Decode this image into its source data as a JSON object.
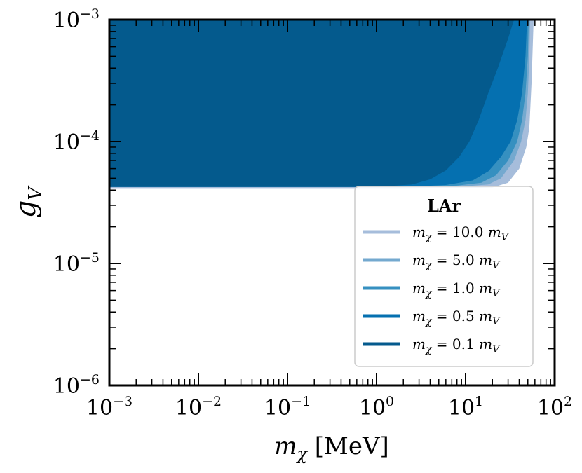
{
  "chart_data": {
    "type": "area",
    "xscale": "log",
    "yscale": "log",
    "xlim": [
      0.001,
      100
    ],
    "ylim": [
      1e-06,
      0.001
    ],
    "xlabel": "m_χ [MeV]",
    "ylabel": "g_V",
    "x_ticks": [
      {
        "base": "10",
        "exp": "−3",
        "value": 0.001
      },
      {
        "base": "10",
        "exp": "−2",
        "value": 0.01
      },
      {
        "base": "10",
        "exp": "−1",
        "value": 0.1
      },
      {
        "base": "10",
        "exp": "0",
        "value": 1
      },
      {
        "base": "10",
        "exp": "1",
        "value": 10
      },
      {
        "base": "10",
        "exp": "2",
        "value": 100
      }
    ],
    "y_ticks": [
      {
        "base": "10",
        "exp": "−6",
        "value": 1e-06
      },
      {
        "base": "10",
        "exp": "−5",
        "value": 1e-05
      },
      {
        "base": "10",
        "exp": "−4",
        "value": 0.0001
      },
      {
        "base": "10",
        "exp": "−3",
        "value": 0.001
      }
    ],
    "legend": {
      "title": "LAr",
      "position": "lower-right"
    },
    "series": [
      {
        "name": "m_χ = 10.0 m_V",
        "legend_parts": {
          "lhs": "m",
          "lhs_sub": "χ",
          "mid": " = 10.0 ",
          "rhs": "m",
          "rhs_sub": "V"
        },
        "color": "#a6bddb",
        "lower_boundary": [
          [
            0.001,
            4.1e-05
          ],
          [
            2,
            4.1e-05
          ],
          [
            10,
            4.15e-05
          ],
          [
            20,
            4.2e-05
          ],
          [
            30,
            4.6e-05
          ],
          [
            40,
            6e-05
          ],
          [
            48,
            9e-05
          ],
          [
            52,
            0.00013
          ],
          [
            55,
            0.0003
          ],
          [
            58,
            0.001
          ]
        ]
      },
      {
        "name": "m_χ = 5.0 m_V",
        "legend_parts": {
          "lhs": "m",
          "lhs_sub": "χ",
          "mid": " = 5.0 ",
          "rhs": "m",
          "rhs_sub": "V"
        },
        "color": "#74a9cf",
        "lower_boundary": [
          [
            0.001,
            4.25e-05
          ],
          [
            2,
            4.25e-05
          ],
          [
            10,
            4.3e-05
          ],
          [
            18,
            4.45e-05
          ],
          [
            25,
            5e-05
          ],
          [
            35,
            7e-05
          ],
          [
            42,
            0.0001
          ],
          [
            47,
            0.00015
          ],
          [
            50,
            0.00025
          ],
          [
            52,
            0.0005
          ],
          [
            53,
            0.001
          ]
        ]
      },
      {
        "name": "m_χ = 1.0 m_V",
        "legend_parts": {
          "lhs": "m",
          "lhs_sub": "χ",
          "mid": " = 1.0 ",
          "rhs": "m",
          "rhs_sub": "V"
        },
        "color": "#3690c0",
        "lower_boundary": [
          [
            0.001,
            4.25e-05
          ],
          [
            2,
            4.25e-05
          ],
          [
            8,
            4.35e-05
          ],
          [
            15,
            4.6e-05
          ],
          [
            22,
            5.3e-05
          ],
          [
            30,
            7e-05
          ],
          [
            38,
            0.0001
          ],
          [
            43,
            0.00015
          ],
          [
            47,
            0.00025
          ],
          [
            50,
            0.0005
          ],
          [
            51,
            0.001
          ]
        ]
      },
      {
        "name": "m_χ = 0.5 m_V",
        "legend_parts": {
          "lhs": "m",
          "lhs_sub": "χ",
          "mid": " = 0.5 ",
          "rhs": "m",
          "rhs_sub": "V"
        },
        "color": "#0570b0",
        "lower_boundary": [
          [
            0.001,
            4.25e-05
          ],
          [
            2,
            4.25e-05
          ],
          [
            6,
            4.4e-05
          ],
          [
            12,
            4.8e-05
          ],
          [
            18,
            5.7e-05
          ],
          [
            25,
            7.5e-05
          ],
          [
            32,
            0.0001
          ],
          [
            38,
            0.00015
          ],
          [
            43,
            0.00025
          ],
          [
            47,
            0.0005
          ],
          [
            49,
            0.001
          ]
        ]
      },
      {
        "name": "m_χ = 0.1 m_V",
        "legend_parts": {
          "lhs": "m",
          "lhs_sub": "χ",
          "mid": " = 0.1 ",
          "rhs": "m",
          "rhs_sub": "V"
        },
        "color": "#045a8d",
        "lower_boundary": [
          [
            0.001,
            4.25e-05
          ],
          [
            1,
            4.25e-05
          ],
          [
            2.5,
            4.45e-05
          ],
          [
            4,
            4.9e-05
          ],
          [
            6,
            5.8e-05
          ],
          [
            8.5,
            7.5e-05
          ],
          [
            11,
            0.0001
          ],
          [
            14,
            0.00015
          ],
          [
            18,
            0.00025
          ],
          [
            23,
            0.0004
          ],
          [
            30,
            0.0007
          ],
          [
            35,
            0.001
          ]
        ]
      }
    ]
  }
}
